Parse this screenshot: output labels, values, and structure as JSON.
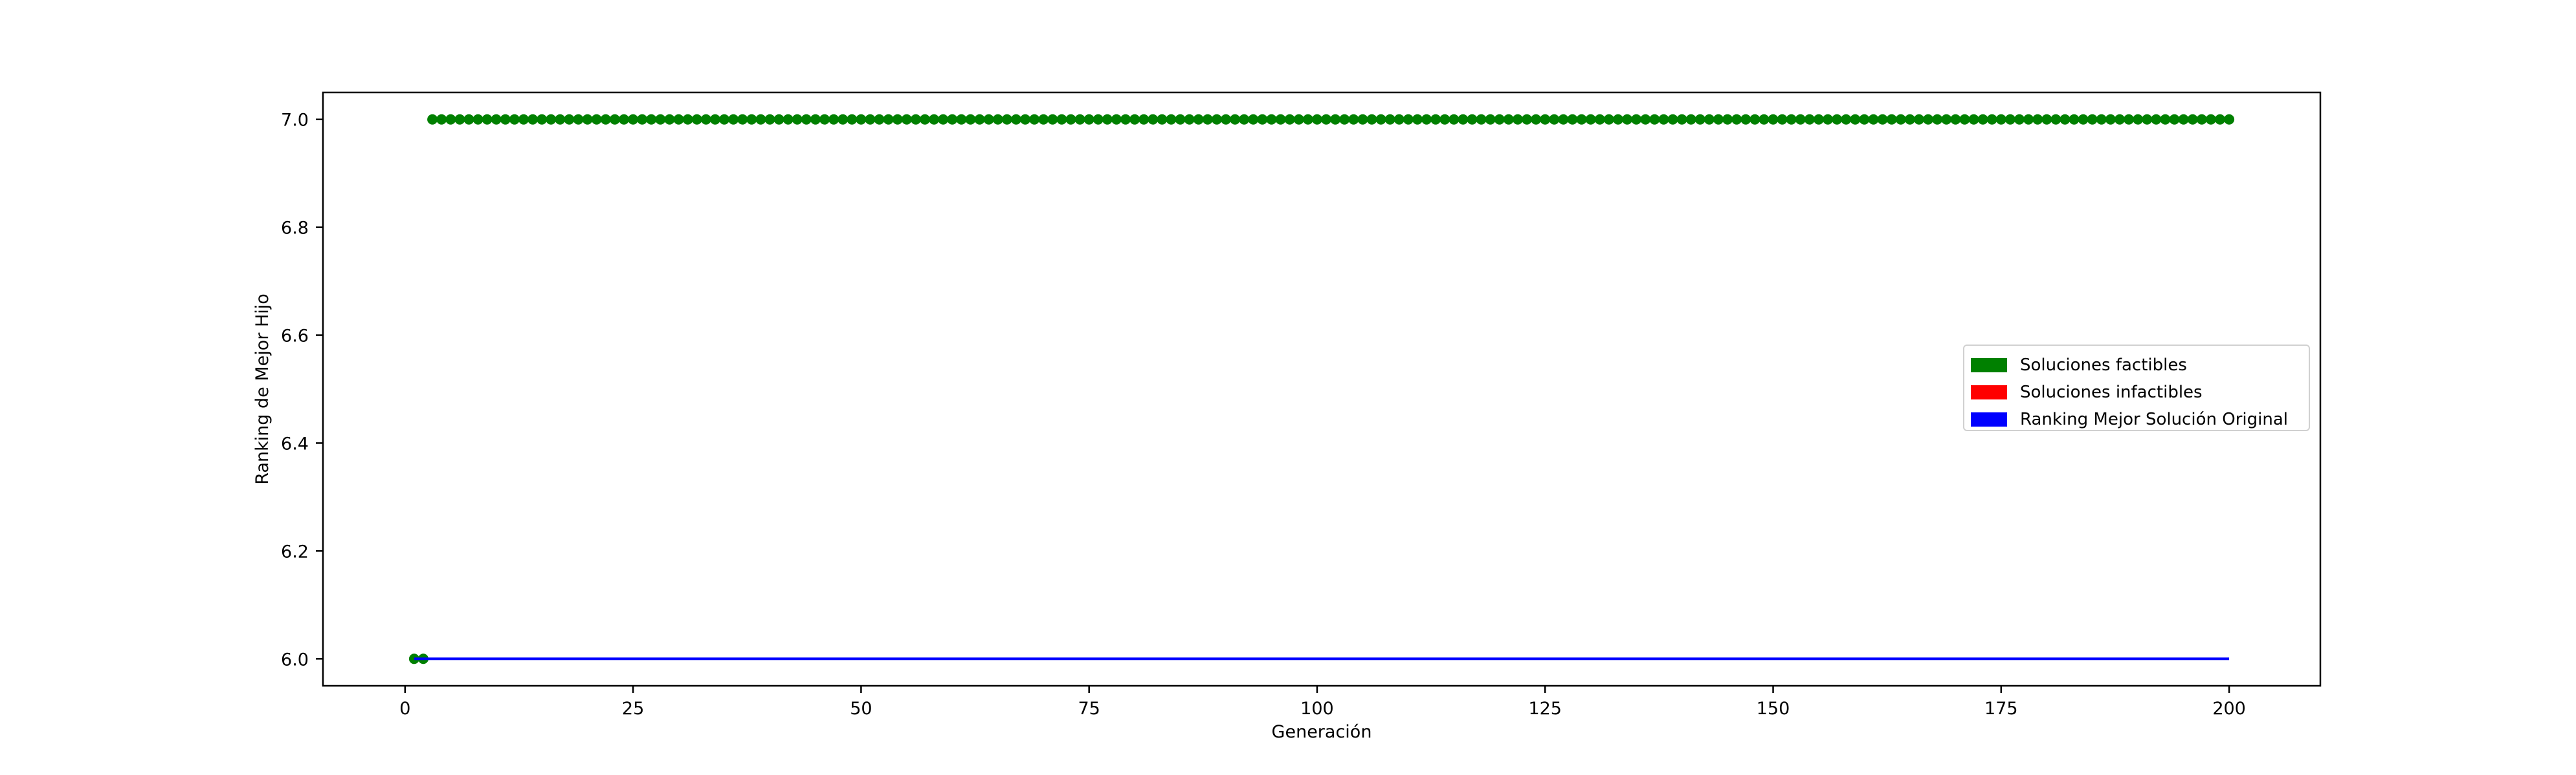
{
  "chart_data": {
    "type": "scatter",
    "title": "",
    "xlabel": "Generación",
    "ylabel": "Ranking de Mejor Hijo",
    "xlim": [
      -9,
      210
    ],
    "ylim": [
      5.95,
      7.05
    ],
    "x_ticks": [
      0,
      25,
      50,
      75,
      100,
      125,
      150,
      175,
      200
    ],
    "y_ticks": [
      6.0,
      6.2,
      6.4,
      6.6,
      6.8,
      7.0
    ],
    "x_tick_labels": [
      "0",
      "25",
      "50",
      "75",
      "100",
      "125",
      "150",
      "175",
      "200"
    ],
    "y_tick_labels": [
      "6.0",
      "6.2",
      "6.4",
      "6.6",
      "6.8",
      "7.0"
    ],
    "grid": false,
    "legend_position": "center-right",
    "series": [
      {
        "name": "Soluciones factibles",
        "kind": "points",
        "color": "#008000",
        "x_start": 3,
        "x_end": 200,
        "y": 7.0
      },
      {
        "name": "Soluciones factibles",
        "kind": "points",
        "color": "#008000",
        "x": [
          1,
          2
        ],
        "y": [
          6.0,
          6.0
        ]
      },
      {
        "name": "Soluciones infactibles",
        "kind": "points",
        "color": "#ff0000",
        "x": [],
        "y": []
      },
      {
        "name": "Ranking Mejor Solución Original",
        "kind": "line",
        "color": "#0000ff",
        "x": [
          1,
          200
        ],
        "y": [
          6.0,
          6.0
        ]
      }
    ],
    "legend": [
      {
        "label": "Soluciones factibles",
        "color": "#008000"
      },
      {
        "label": "Soluciones infactibles",
        "color": "#ff0000"
      },
      {
        "label": "Ranking Mejor Solución Original",
        "color": "#0000ff"
      }
    ]
  }
}
